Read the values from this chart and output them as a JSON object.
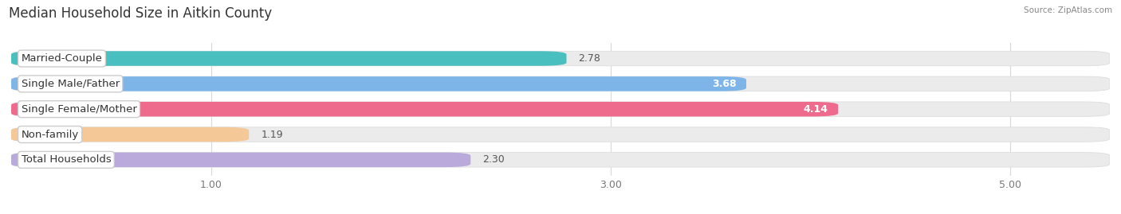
{
  "title": "Median Household Size in Aitkin County",
  "source": "Source: ZipAtlas.com",
  "categories": [
    "Married-Couple",
    "Single Male/Father",
    "Single Female/Mother",
    "Non-family",
    "Total Households"
  ],
  "values": [
    2.78,
    3.68,
    4.14,
    1.19,
    2.3
  ],
  "bar_colors": [
    "#49BFBF",
    "#7EB5E8",
    "#EE6B8E",
    "#F5C898",
    "#B9AADB"
  ],
  "value_in_bar": [
    false,
    true,
    true,
    false,
    false
  ],
  "xlim_min": 0.0,
  "xlim_max": 5.5,
  "xstart": 0.0,
  "xticks": [
    1.0,
    3.0,
    5.0
  ],
  "xtick_labels": [
    "1.00",
    "3.00",
    "5.00"
  ],
  "background_color": "#ffffff",
  "bar_bg_color": "#ebebeb",
  "bar_bg_edge_color": "#dddddd",
  "title_fontsize": 12,
  "label_fontsize": 9.5,
  "value_fontsize": 9
}
